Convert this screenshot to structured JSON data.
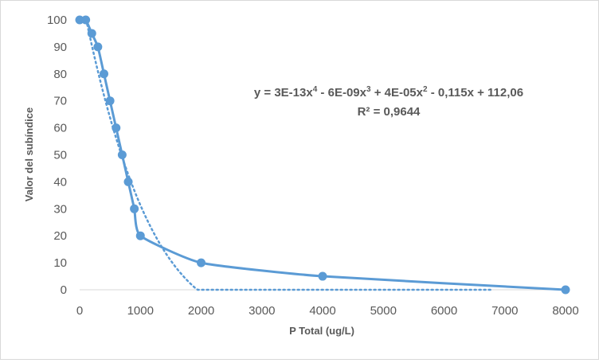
{
  "chart_data": {
    "type": "scatter",
    "xlabel": "P Total (ug/L)",
    "ylabel": "Valor del subíndice",
    "xlim": [
      0,
      8000
    ],
    "ylim": [
      0,
      100
    ],
    "x_ticks": [
      0,
      1000,
      2000,
      3000,
      4000,
      5000,
      6000,
      7000,
      8000
    ],
    "y_ticks": [
      0,
      10,
      20,
      30,
      40,
      50,
      60,
      70,
      80,
      90,
      100
    ],
    "grid": false,
    "series": [
      {
        "style": "smooth line with markers",
        "color": "#5B9BD5",
        "x": [
          0,
          100,
          200,
          300,
          400,
          500,
          600,
          700,
          800,
          900,
          1000,
          2000,
          4000,
          8000
        ],
        "y": [
          100,
          100,
          95,
          90,
          80,
          70,
          60,
          50,
          40,
          30,
          20,
          10,
          5,
          0
        ]
      }
    ],
    "trendline": {
      "type": "polynomial",
      "order": 4,
      "style": "dotted",
      "color": "#5B9BD5",
      "coefficients": [
        3e-13,
        -6e-09,
        4e-05,
        -0.115,
        112.06
      ],
      "x_range": [
        100,
        6800
      ],
      "equation": "y = 3E-13x",
      "equation_parts": [
        "y = 3E-13x",
        "4",
        " - 6E-09x",
        "3",
        " + 4E-05x",
        "2",
        " - 0,115x + 112,06"
      ],
      "r2_label": "R² = 0,9644"
    }
  }
}
